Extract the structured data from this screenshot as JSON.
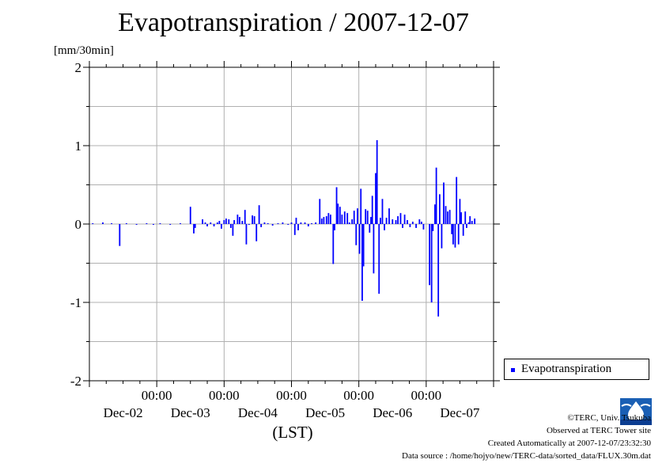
{
  "header": {
    "title": "Evapotranspiration / 2007-12-07",
    "unit": "[mm/30min]"
  },
  "legend": {
    "label": "Evapotranspiration"
  },
  "footer": {
    "copyright": "©TERC, Univ. Tsukuba",
    "site": "Observed at TERC Tower site",
    "created": "Created Automatically at 2007-12-07/23:32:30",
    "source": "Data source : /home/hojyo/new/TERC-data/sorted_data/FLUX.30m.dat"
  },
  "colors": {
    "series": "#0000ff",
    "grid": "#b0b0b0"
  },
  "chart_data": {
    "type": "bar",
    "title": "Evapotranspiration / 2007-12-07",
    "ylabel": "[mm/30min]",
    "xlabel": "(LST)",
    "ylim": [
      -2,
      2
    ],
    "yticks": [
      2,
      1,
      0,
      -1,
      -2
    ],
    "xlim": [
      0,
      6
    ],
    "x_units": "days from Dec-02 00:00 (LST)",
    "grid": true,
    "legend_position": "right",
    "xticks": [
      {
        "x": 1,
        "time": "00:00",
        "date": "Dec-03"
      },
      {
        "x": 2,
        "time": "00:00",
        "date": "Dec-04"
      },
      {
        "x": 3,
        "time": "00:00",
        "date": "Dec-05"
      },
      {
        "x": 4,
        "time": "00:00",
        "date": "Dec-06"
      },
      {
        "x": 5,
        "time": "00:00",
        "date": "Dec-07"
      }
    ],
    "date_labels": [
      {
        "x": 0.5,
        "label": "Dec-02"
      },
      {
        "x": 1.5,
        "label": "Dec-03"
      },
      {
        "x": 2.5,
        "label": "Dec-04"
      },
      {
        "x": 3.5,
        "label": "Dec-05"
      },
      {
        "x": 4.5,
        "label": "Dec-06"
      },
      {
        "x": 5.5,
        "label": "Dec-07"
      }
    ],
    "series": [
      {
        "name": "Evapotranspiration",
        "color": "#0000ff",
        "points": [
          [
            0.05,
            0.01
          ],
          [
            0.2,
            0.02
          ],
          [
            0.33,
            0.01
          ],
          [
            0.45,
            -0.28
          ],
          [
            0.55,
            0.01
          ],
          [
            0.7,
            0.0
          ],
          [
            0.85,
            0.01
          ],
          [
            0.95,
            0.0
          ],
          [
            1.05,
            0.01
          ],
          [
            1.2,
            0.0
          ],
          [
            1.35,
            0.01
          ],
          [
            1.5,
            0.22
          ],
          [
            1.55,
            -0.12
          ],
          [
            1.57,
            -0.05
          ],
          [
            1.68,
            0.06
          ],
          [
            1.72,
            0.02
          ],
          [
            1.75,
            -0.03
          ],
          [
            1.8,
            0.02
          ],
          [
            1.85,
            -0.03
          ],
          [
            1.9,
            0.02
          ],
          [
            1.93,
            0.04
          ],
          [
            1.96,
            -0.06
          ],
          [
            2.0,
            0.05
          ],
          [
            2.03,
            0.07
          ],
          [
            2.07,
            0.06
          ],
          [
            2.1,
            -0.05
          ],
          [
            2.13,
            -0.15
          ],
          [
            2.15,
            0.05
          ],
          [
            2.2,
            0.12
          ],
          [
            2.23,
            0.09
          ],
          [
            2.27,
            0.04
          ],
          [
            2.31,
            0.18
          ],
          [
            2.33,
            -0.26
          ],
          [
            2.37,
            0.0
          ],
          [
            2.42,
            0.11
          ],
          [
            2.45,
            0.1
          ],
          [
            2.48,
            -0.22
          ],
          [
            2.52,
            0.24
          ],
          [
            2.55,
            -0.04
          ],
          [
            2.6,
            0.02
          ],
          [
            2.65,
            0.01
          ],
          [
            2.72,
            -0.02
          ],
          [
            2.8,
            0.01
          ],
          [
            2.87,
            0.02
          ],
          [
            2.95,
            -0.01
          ],
          [
            3.0,
            0.02
          ],
          [
            3.05,
            -0.14
          ],
          [
            3.07,
            0.08
          ],
          [
            3.1,
            -0.08
          ],
          [
            3.14,
            0.02
          ],
          [
            3.2,
            0.02
          ],
          [
            3.25,
            -0.03
          ],
          [
            3.3,
            0.01
          ],
          [
            3.36,
            0.02
          ],
          [
            3.42,
            0.32
          ],
          [
            3.45,
            0.07
          ],
          [
            3.48,
            0.09
          ],
          [
            3.52,
            0.1
          ],
          [
            3.55,
            0.14
          ],
          [
            3.58,
            0.12
          ],
          [
            3.62,
            -0.51
          ],
          [
            3.64,
            -0.08
          ],
          [
            3.67,
            0.47
          ],
          [
            3.69,
            0.26
          ],
          [
            3.72,
            0.22
          ],
          [
            3.75,
            0.12
          ],
          [
            3.79,
            0.16
          ],
          [
            3.83,
            0.14
          ],
          [
            3.86,
            0.02
          ],
          [
            3.9,
            0.06
          ],
          [
            3.93,
            0.17
          ],
          [
            3.96,
            -0.27
          ],
          [
            3.98,
            0.2
          ],
          [
            4.01,
            -0.38
          ],
          [
            4.03,
            0.45
          ],
          [
            4.05,
            -0.98
          ],
          [
            4.07,
            -0.54
          ],
          [
            4.1,
            0.19
          ],
          [
            4.13,
            0.17
          ],
          [
            4.16,
            -0.11
          ],
          [
            4.18,
            0.09
          ],
          [
            4.2,
            0.36
          ],
          [
            4.22,
            -0.63
          ],
          [
            4.25,
            0.65
          ],
          [
            4.27,
            1.07
          ],
          [
            4.3,
            -0.89
          ],
          [
            4.32,
            0.08
          ],
          [
            4.35,
            0.32
          ],
          [
            4.38,
            -0.08
          ],
          [
            4.41,
            0.08
          ],
          [
            4.45,
            0.2
          ],
          [
            4.5,
            0.06
          ],
          [
            4.55,
            0.05
          ],
          [
            4.58,
            0.1
          ],
          [
            4.62,
            0.14
          ],
          [
            4.65,
            -0.05
          ],
          [
            4.68,
            0.12
          ],
          [
            4.72,
            0.05
          ],
          [
            4.76,
            -0.04
          ],
          [
            4.8,
            0.03
          ],
          [
            4.85,
            -0.05
          ],
          [
            4.9,
            0.06
          ],
          [
            4.93,
            0.03
          ],
          [
            4.96,
            -0.07
          ],
          [
            5.05,
            -0.78
          ],
          [
            5.08,
            -1.0
          ],
          [
            5.1,
            -0.09
          ],
          [
            5.13,
            0.25
          ],
          [
            5.15,
            0.72
          ],
          [
            5.18,
            -1.18
          ],
          [
            5.2,
            0.38
          ],
          [
            5.23,
            -0.31
          ],
          [
            5.26,
            0.53
          ],
          [
            5.29,
            0.23
          ],
          [
            5.32,
            0.16
          ],
          [
            5.35,
            0.18
          ],
          [
            5.38,
            -0.13
          ],
          [
            5.4,
            -0.26
          ],
          [
            5.43,
            -0.3
          ],
          [
            5.45,
            0.6
          ],
          [
            5.48,
            -0.26
          ],
          [
            5.5,
            0.32
          ],
          [
            5.52,
            0.15
          ],
          [
            5.55,
            -0.15
          ],
          [
            5.58,
            0.16
          ],
          [
            5.6,
            -0.05
          ],
          [
            5.63,
            0.02
          ],
          [
            5.65,
            0.1
          ],
          [
            5.68,
            0.04
          ],
          [
            5.72,
            0.07
          ]
        ]
      }
    ]
  }
}
